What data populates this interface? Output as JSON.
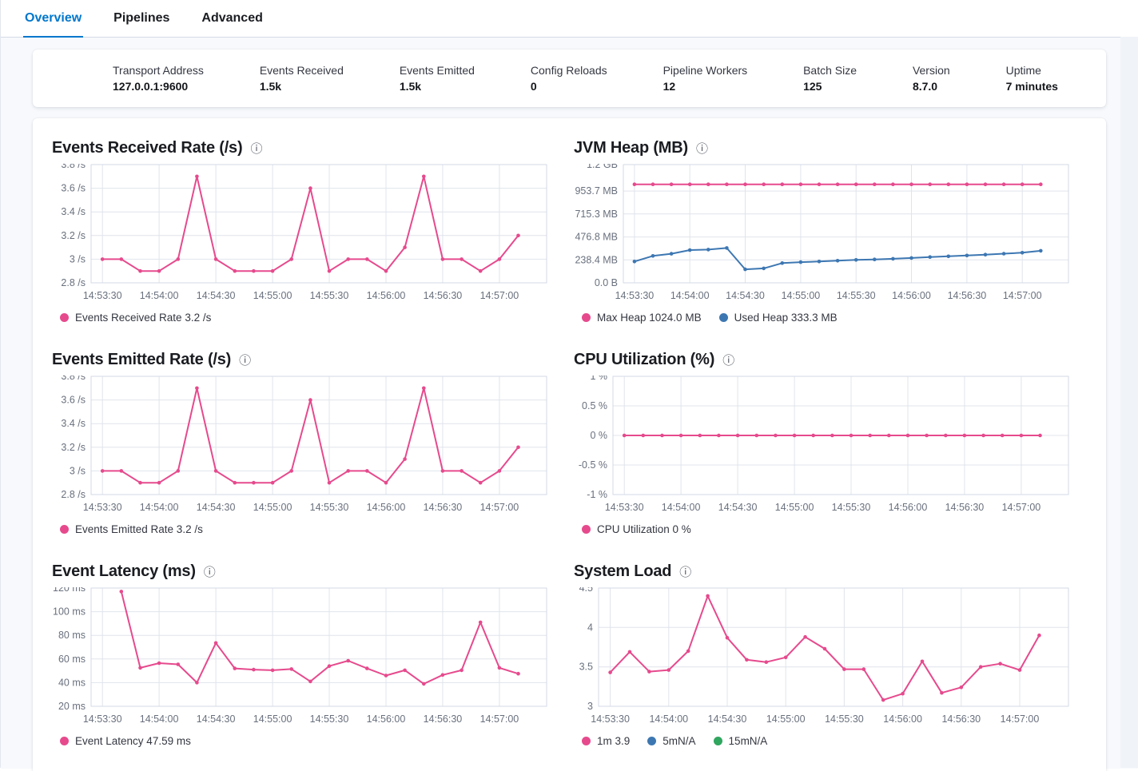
{
  "icons": {
    "info": "ⓘ"
  },
  "colors": {
    "pink": "#E64A8D",
    "blue": "#3D77B2",
    "green": "#30A65F",
    "grid": "#E0E4EB",
    "plot_border": "#D3DAE6",
    "axis_text": "#69707D",
    "title_text": "#1A1C21",
    "tab_active": "#0077CC",
    "page_bg": "#F7F9FC"
  },
  "tabs": [
    {
      "label": "Overview",
      "active": true
    },
    {
      "label": "Pipelines",
      "active": false
    },
    {
      "label": "Advanced",
      "active": false
    }
  ],
  "summary": [
    {
      "label": "Transport Address",
      "value": "127.0.0.1:9600"
    },
    {
      "label": "Events Received",
      "value": "1.5k"
    },
    {
      "label": "Events Emitted",
      "value": "1.5k"
    },
    {
      "label": "Config Reloads",
      "value": "0"
    },
    {
      "label": "Pipeline Workers",
      "value": "12"
    },
    {
      "label": "Batch Size",
      "value": "125"
    },
    {
      "label": "Version",
      "value": "8.7.0"
    },
    {
      "label": "Uptime",
      "value": "7 minutes"
    }
  ],
  "x_axis": {
    "timestamps": [
      "14:53:30",
      "14:53:40",
      "14:53:50",
      "14:54:00",
      "14:54:10",
      "14:54:20",
      "14:54:30",
      "14:54:40",
      "14:54:50",
      "14:55:00",
      "14:55:10",
      "14:55:20",
      "14:55:30",
      "14:55:40",
      "14:55:50",
      "14:56:00",
      "14:56:10",
      "14:56:20",
      "14:56:30",
      "14:56:40",
      "14:56:50",
      "14:57:00",
      "14:57:10"
    ],
    "tick_labels": [
      "14:53:30",
      "14:54:00",
      "14:54:30",
      "14:55:00",
      "14:55:30",
      "14:56:00",
      "14:56:30",
      "14:57:00"
    ],
    "tick_seconds": [
      0,
      30,
      60,
      90,
      120,
      150,
      180,
      210
    ],
    "domain_seconds": [
      -6,
      235
    ],
    "point_interval_seconds": 10
  },
  "chart_data": [
    {
      "id": "events-received-rate",
      "type": "line",
      "title": "Events Received Rate (/s)",
      "ylabel": "/s",
      "y_min": 2.8,
      "y_max": 3.8,
      "y_ticks": [
        {
          "label": "3.8 /s",
          "value": 3.8
        },
        {
          "label": "3.6 /s",
          "value": 3.6
        },
        {
          "label": "3.4 /s",
          "value": 3.4
        },
        {
          "label": "3.2 /s",
          "value": 3.2
        },
        {
          "label": "3 /s",
          "value": 3
        },
        {
          "label": "2.8 /s",
          "value": 2.8
        }
      ],
      "series": [
        {
          "name": "Events Received Rate",
          "color": "pink",
          "values": [
            3,
            3,
            2.9,
            2.9,
            3,
            3.7,
            3,
            2.9,
            2.9,
            2.9,
            3,
            3.6,
            2.9,
            3,
            3,
            2.9,
            3.1,
            3.7,
            3,
            3,
            2.9,
            3,
            3.2
          ]
        }
      ],
      "legend": [
        {
          "color": "pink",
          "label": "Events Received Rate 3.2 /s"
        }
      ]
    },
    {
      "id": "jvm-heap",
      "type": "line",
      "title": "JVM Heap (MB)",
      "ylabel": "MB",
      "y_min": 0,
      "y_max": 1228.8,
      "y_ticks": [
        {
          "label": "1.2 GB",
          "value": 1228.8
        },
        {
          "label": "953.7 MB",
          "value": 953.7
        },
        {
          "label": "715.3 MB",
          "value": 715.3
        },
        {
          "label": "476.8 MB",
          "value": 476.8
        },
        {
          "label": "238.4 MB",
          "value": 238.4
        },
        {
          "label": "0.0 B",
          "value": 0
        }
      ],
      "series": [
        {
          "name": "Max Heap",
          "color": "pink",
          "values": [
            1024,
            1024,
            1024,
            1024,
            1024,
            1024,
            1024,
            1024,
            1024,
            1024,
            1024,
            1024,
            1024,
            1024,
            1024,
            1024,
            1024,
            1024,
            1024,
            1024,
            1024,
            1024,
            1024
          ]
        },
        {
          "name": "Used Heap",
          "color": "blue",
          "values": [
            222,
            280,
            302,
            340,
            345,
            362,
            140,
            150,
            205,
            215,
            222,
            230,
            238,
            243,
            250,
            258,
            268,
            276,
            284,
            293,
            303,
            313,
            333
          ]
        }
      ],
      "legend": [
        {
          "color": "pink",
          "label": "Max Heap 1024.0 MB"
        },
        {
          "color": "blue",
          "label": "Used Heap 333.3 MB"
        }
      ]
    },
    {
      "id": "events-emitted-rate",
      "type": "line",
      "title": "Events Emitted Rate (/s)",
      "ylabel": "/s",
      "y_min": 2.8,
      "y_max": 3.8,
      "y_ticks": [
        {
          "label": "3.8 /s",
          "value": 3.8
        },
        {
          "label": "3.6 /s",
          "value": 3.6
        },
        {
          "label": "3.4 /s",
          "value": 3.4
        },
        {
          "label": "3.2 /s",
          "value": 3.2
        },
        {
          "label": "3 /s",
          "value": 3
        },
        {
          "label": "2.8 /s",
          "value": 2.8
        }
      ],
      "series": [
        {
          "name": "Events Emitted Rate",
          "color": "pink",
          "values": [
            3,
            3,
            2.9,
            2.9,
            3,
            3.7,
            3,
            2.9,
            2.9,
            2.9,
            3,
            3.6,
            2.9,
            3,
            3,
            2.9,
            3.1,
            3.7,
            3,
            3,
            2.9,
            3,
            3.2
          ]
        }
      ],
      "legend": [
        {
          "color": "pink",
          "label": "Events Emitted Rate 3.2 /s"
        }
      ]
    },
    {
      "id": "cpu-utilization",
      "type": "line",
      "title": "CPU Utilization (%)",
      "ylabel": "%",
      "y_min": -1,
      "y_max": 1,
      "y_ticks": [
        {
          "label": "1 %",
          "value": 1
        },
        {
          "label": "0.5 %",
          "value": 0.5
        },
        {
          "label": "0 %",
          "value": 0
        },
        {
          "label": "-0.5 %",
          "value": -0.5
        },
        {
          "label": "-1 %",
          "value": -1
        }
      ],
      "series": [
        {
          "name": "CPU Utilization",
          "color": "pink",
          "values": [
            0,
            0,
            0,
            0,
            0,
            0,
            0,
            0,
            0,
            0,
            0,
            0,
            0,
            0,
            0,
            0,
            0,
            0,
            0,
            0,
            0,
            0,
            0
          ]
        }
      ],
      "legend": [
        {
          "color": "pink",
          "label": "CPU Utilization 0 %"
        }
      ]
    },
    {
      "id": "event-latency",
      "type": "line",
      "title": "Event Latency (ms)",
      "ylabel": "ms",
      "y_min": 20,
      "y_max": 120,
      "y_ticks": [
        {
          "label": "120 ms",
          "value": 120
        },
        {
          "label": "100 ms",
          "value": 100
        },
        {
          "label": "80 ms",
          "value": 80
        },
        {
          "label": "60 ms",
          "value": 60
        },
        {
          "label": "40 ms",
          "value": 40
        },
        {
          "label": "20 ms",
          "value": 20
        }
      ],
      "series": [
        {
          "name": "Event Latency",
          "color": "pink",
          "values": [
            null,
            117,
            52.5,
            56.5,
            55.5,
            40,
            73.5,
            52,
            51,
            50.5,
            51.5,
            41,
            54,
            58.5,
            52,
            46,
            50.5,
            39,
            46.5,
            50.5,
            91,
            52.5,
            47.59
          ]
        }
      ],
      "legend": [
        {
          "color": "pink",
          "label": "Event Latency 47.59 ms"
        }
      ]
    },
    {
      "id": "system-load",
      "type": "line",
      "title": "System Load",
      "ylabel": "",
      "y_min": 3,
      "y_max": 4.5,
      "y_ticks": [
        {
          "label": "4.5",
          "value": 4.5
        },
        {
          "label": "4",
          "value": 4
        },
        {
          "label": "3.5",
          "value": 3.5
        },
        {
          "label": "3",
          "value": 3
        }
      ],
      "series": [
        {
          "name": "1m",
          "color": "pink",
          "values": [
            3.43,
            3.69,
            3.44,
            3.46,
            3.7,
            4.4,
            3.87,
            3.59,
            3.56,
            3.62,
            3.88,
            3.73,
            3.47,
            3.47,
            3.08,
            3.16,
            3.57,
            3.17,
            3.24,
            3.5,
            3.54,
            3.46,
            3.9
          ]
        }
      ],
      "legend": [
        {
          "color": "pink",
          "label": "1m 3.9"
        },
        {
          "color": "blue",
          "label": "5mN/A"
        },
        {
          "color": "green",
          "label": "15mN/A"
        }
      ]
    }
  ]
}
